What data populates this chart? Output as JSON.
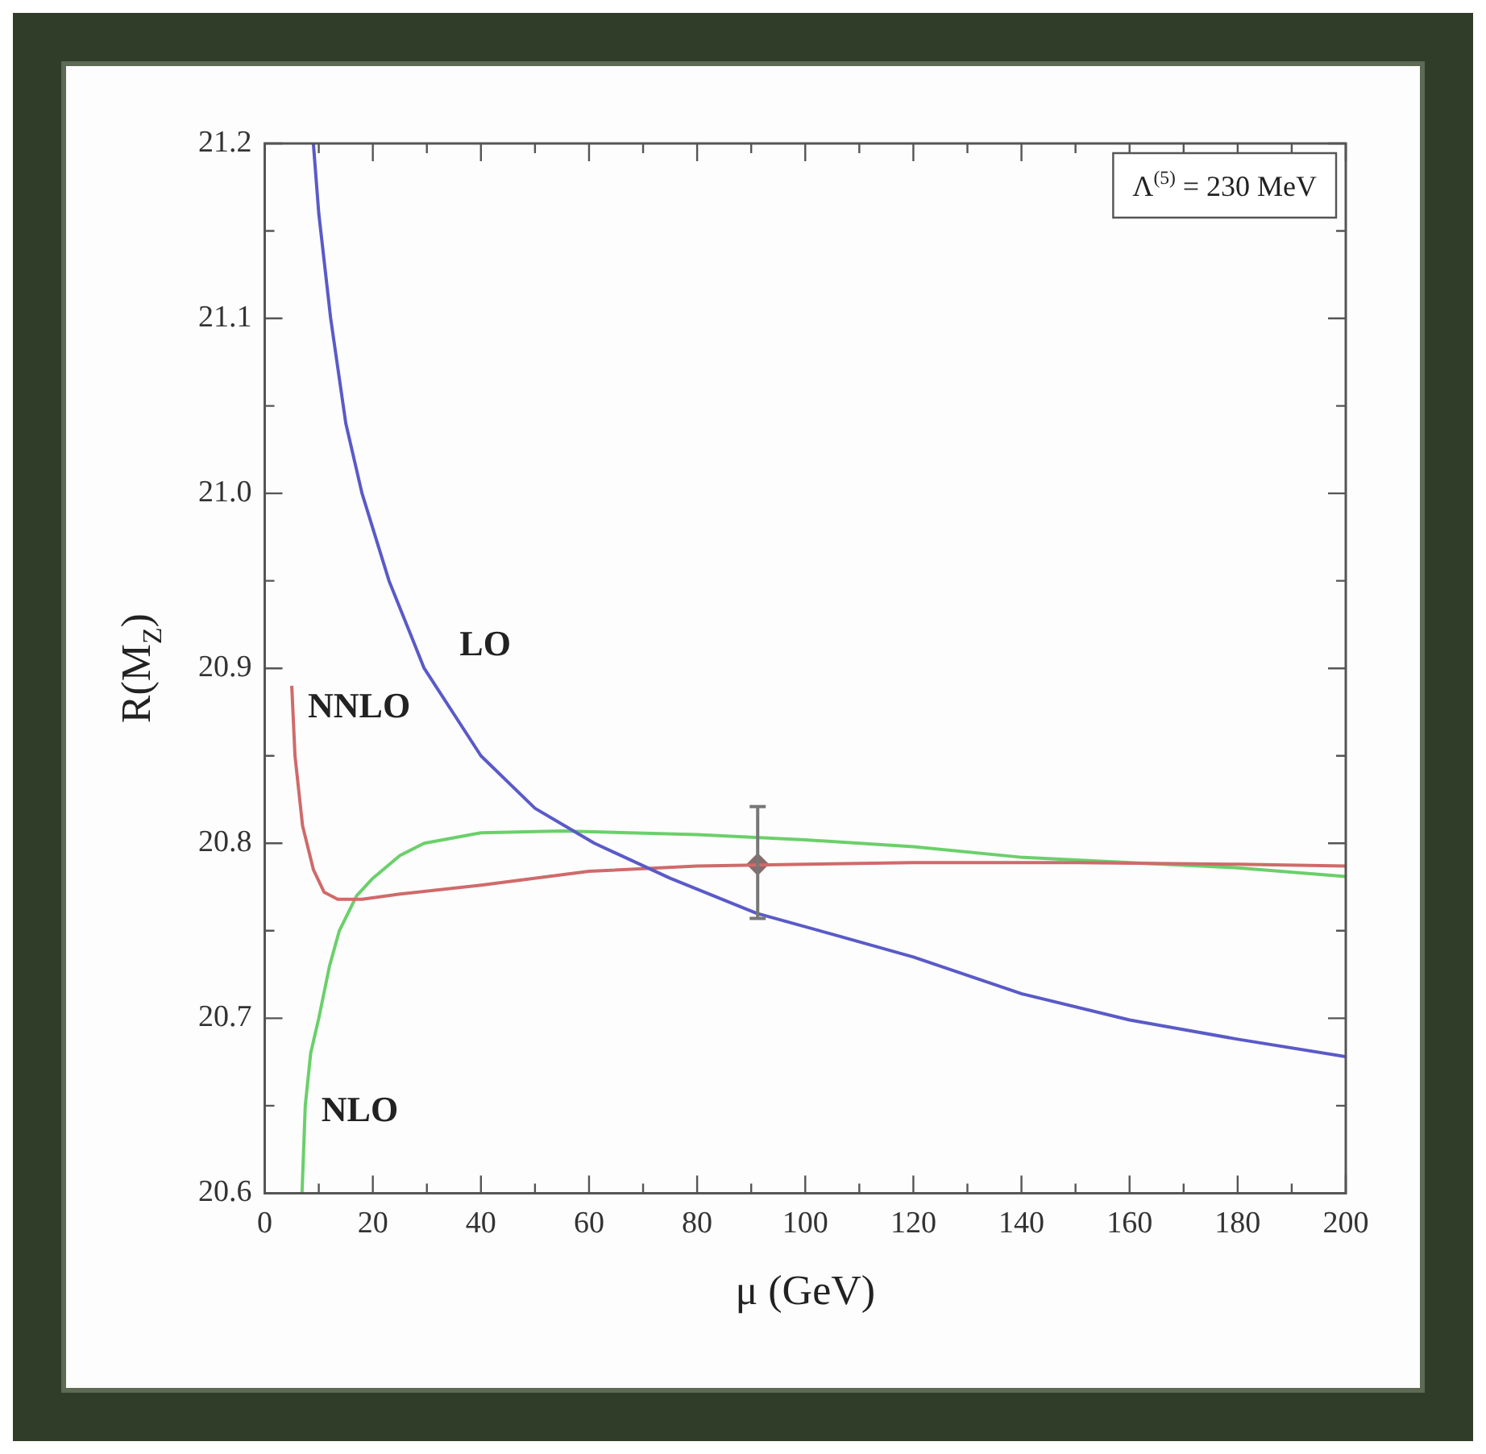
{
  "chart_data": {
    "type": "line",
    "xlabel": "μ (GeV)",
    "ylabel": "R(M$_{Z}$)",
    "annotations": [
      "Λ$^{(5)}$ = 230 MeV"
    ],
    "xlim": [
      0,
      200
    ],
    "xticks": [
      0,
      {
        "value": 10,
        "label": null
      },
      20,
      {
        "value": 30,
        "label": null
      },
      40,
      {
        "value": 50,
        "label": null
      },
      60,
      {
        "value": 70,
        "label": null
      },
      80,
      {
        "value": 90,
        "label": null
      },
      100,
      {
        "value": 110,
        "label": null
      },
      120,
      {
        "value": 130,
        "label": null
      },
      140,
      {
        "value": 150,
        "label": null
      },
      160,
      {
        "value": 170,
        "label": null
      },
      180,
      {
        "value": 190,
        "label": null
      },
      200
    ],
    "ylim": [
      20.6,
      21.2
    ],
    "yticks": [
      20.6,
      {
        "value": 20.65,
        "label": null
      },
      20.7,
      {
        "value": 20.75,
        "label": null
      },
      20.8,
      {
        "value": 20.85,
        "label": null
      },
      20.9,
      {
        "value": 20.95,
        "label": null
      },
      {
        "value": 21,
        "label": "21.0"
      },
      {
        "value": 21.05,
        "label": null
      },
      21.1,
      {
        "value": 21.15,
        "label": null
      },
      21.2
    ],
    "grid": false,
    "legend": false,
    "series": [
      {
        "name": "LO",
        "color": "#5a5ac8",
        "x": [
          9,
          10,
          12.2,
          15,
          18,
          23,
          29.5,
          40,
          50,
          61,
          75,
          91,
          105,
          120,
          140,
          160,
          180,
          200
        ],
        "values": [
          21.2,
          21.16,
          21.1,
          21.04,
          21.0,
          20.95,
          20.9,
          20.85,
          20.82,
          20.8,
          20.78,
          20.76,
          20.748,
          20.735,
          20.714,
          20.699,
          20.688,
          20.678
        ]
      },
      {
        "name": "NNLO",
        "color": "#d06a6a",
        "x": [
          5,
          5.6,
          7,
          9,
          11,
          13.5,
          18,
          25,
          40,
          60,
          80,
          100,
          120,
          150,
          180,
          200
        ],
        "values": [
          20.89,
          20.85,
          20.81,
          20.785,
          20.772,
          20.768,
          20.768,
          20.771,
          20.776,
          20.784,
          20.787,
          20.788,
          20.789,
          20.789,
          20.788,
          20.787
        ]
      },
      {
        "name": "NLO",
        "color": "#6ad06a",
        "x": [
          6.9,
          7.5,
          8.5,
          10,
          12,
          13.8,
          17,
          20,
          25,
          29.5,
          40,
          55,
          80,
          100,
          120,
          140,
          160,
          180,
          200
        ],
        "values": [
          20.6,
          20.65,
          20.68,
          20.7,
          20.73,
          20.75,
          20.77,
          20.78,
          20.793,
          20.8,
          20.806,
          20.807,
          20.805,
          20.802,
          20.798,
          20.792,
          20.789,
          20.786,
          20.781
        ]
      },
      {
        "type": "scatter",
        "color": "#8a6a6a",
        "marker": "diamond",
        "x": [
          91.2
        ],
        "values": [
          20.788
        ],
        "errors": [
          [
            20.757,
            20.821
          ]
        ]
      }
    ]
  }
}
